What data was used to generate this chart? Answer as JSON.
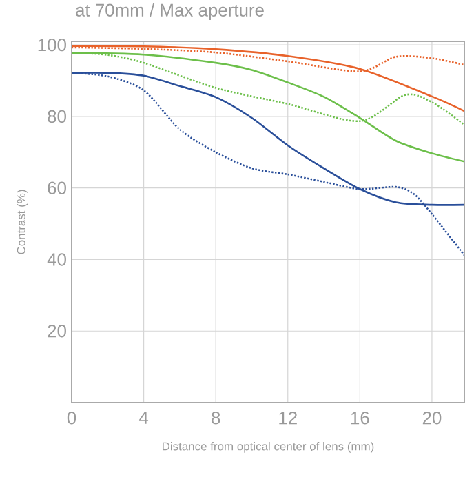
{
  "chart_data": {
    "type": "line",
    "title": "at 70mm / Max aperture",
    "xlabel": "Distance from optical center of lens (mm)",
    "ylabel": "Contrast (%)",
    "xlim": [
      0,
      21.8
    ],
    "ylim": [
      0,
      101
    ],
    "xticks": [
      0,
      4,
      8,
      12,
      16,
      20
    ],
    "yticks": [
      {
        "value": 0,
        "label": null
      },
      20,
      40,
      60,
      80,
      100
    ],
    "grid": true,
    "marker": "none",
    "series": [
      {
        "color": "#e8622a",
        "line_style": "solid",
        "x": [
          0,
          4,
          8,
          12,
          16,
          20,
          21.8
        ],
        "values": [
          99.7,
          99.6,
          98.8,
          96.9,
          93.3,
          85.6,
          81.5
        ]
      },
      {
        "color": "#e8622a",
        "line_style": "dotted",
        "x": [
          0,
          4,
          8,
          12,
          16,
          18,
          20,
          21.8
        ],
        "values": [
          99.3,
          98.9,
          97.9,
          95.4,
          92.6,
          96.7,
          96.3,
          94.4
        ]
      },
      {
        "color": "#6cbf4a",
        "line_style": "solid",
        "x": [
          0,
          4,
          8,
          10,
          12,
          14,
          16,
          18,
          20,
          21.8
        ],
        "values": [
          97.8,
          97.3,
          95,
          93,
          89.5,
          85.5,
          79.6,
          73.2,
          69.7,
          67.4
        ]
      },
      {
        "color": "#6cbf4a",
        "line_style": "dotted",
        "x": [
          0,
          2,
          4,
          8,
          12,
          16,
          18.5,
          20,
          21.8
        ],
        "values": [
          97.8,
          97.2,
          95,
          88,
          83.5,
          78.7,
          86,
          84,
          77.7
        ]
      },
      {
        "color": "#2a4f9a",
        "line_style": "solid",
        "x": [
          0,
          2,
          4,
          6,
          8,
          10,
          12,
          14,
          16,
          18,
          20,
          21.8
        ],
        "values": [
          92.2,
          92.2,
          91.4,
          88.5,
          85.4,
          79.6,
          71.9,
          65.5,
          59.7,
          56,
          55.3,
          55.3
        ]
      },
      {
        "color": "#2a4f9a",
        "line_style": "dotted",
        "x": [
          0,
          2,
          4,
          6,
          8,
          10,
          12,
          14,
          16,
          18,
          19,
          20,
          21.8
        ],
        "values": [
          92.2,
          91.2,
          87.3,
          76.4,
          70,
          65.5,
          63.8,
          61.7,
          59.7,
          60.3,
          58.3,
          52.7,
          41.2
        ]
      }
    ]
  }
}
